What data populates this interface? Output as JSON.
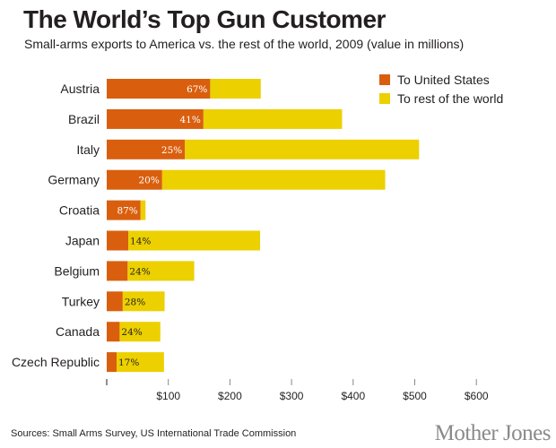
{
  "chart_data": {
    "type": "bar",
    "orientation": "horizontal",
    "stacked": true,
    "title": "The World’s Top Gun Customer",
    "subtitle": "Small-arms exports to America vs. the rest of the world, 2009 (value in millions)",
    "xlabel": "",
    "ylabel": "",
    "xlim": [
      0,
      600
    ],
    "x_ticks": [
      0,
      100,
      200,
      300,
      400,
      500,
      600
    ],
    "x_tick_labels": [
      "",
      "$100",
      "$200",
      "$300",
      "$400",
      "$500",
      "$600"
    ],
    "grid": false,
    "legend_position": "top-right",
    "categories": [
      "Austria",
      "Brazil",
      "Italy",
      "Germany",
      "Croatia",
      "Japan",
      "Belgium",
      "Turkey",
      "Canada",
      "Czech Republic"
    ],
    "series": [
      {
        "name": "To United States",
        "color": "#d95f0e",
        "values": [
          168,
          157,
          127,
          90,
          55,
          35,
          34,
          26,
          21,
          16
        ]
      },
      {
        "name": "To rest of the world",
        "color": "#ecd000",
        "values": [
          82,
          225,
          380,
          362,
          8,
          214,
          108,
          68,
          66,
          77
        ]
      }
    ],
    "totals": [
      250,
      382,
      507,
      452,
      63,
      249,
      142,
      94,
      87,
      93
    ],
    "us_share_labels": [
      "67%",
      "41%",
      "25%",
      "20%",
      "87%",
      "14%",
      "24%",
      "28%",
      "24%",
      "17%"
    ],
    "label_inside_us_bar": [
      true,
      true,
      true,
      true,
      true,
      false,
      false,
      false,
      false,
      false
    ]
  },
  "footer": {
    "sources": "Sources: Small Arms Survey, US International Trade Commission",
    "brand": "Mother Jones"
  }
}
